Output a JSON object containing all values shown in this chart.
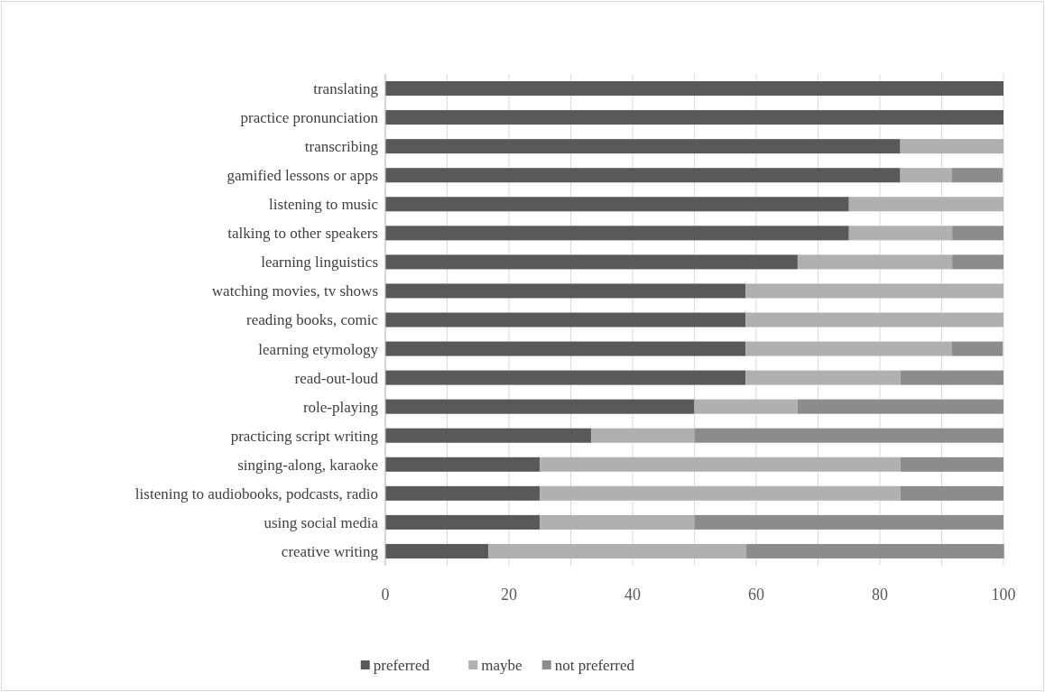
{
  "chart_data": {
    "type": "bar",
    "orientation": "horizontal",
    "stacked": true,
    "categories": [
      "translating",
      "practice pronunciation",
      "transcribing",
      "gamified lessons or apps",
      "listening to music",
      "talking to other speakers",
      "learning linguistics",
      "watching movies, tv shows",
      "reading books, comic",
      "learning etymology",
      "read-out-loud",
      "role-playing",
      "practicing script writing",
      "singing-along, karaoke",
      "listening to audiobooks, podcasts, radio",
      "using social media",
      "creative writing"
    ],
    "series": [
      {
        "name": "preferred",
        "color": "#595959",
        "values": [
          100,
          100,
          83.3,
          83.3,
          75,
          75,
          66.7,
          58.3,
          58.3,
          58.3,
          58.3,
          50,
          33.3,
          25,
          25,
          25,
          16.7
        ]
      },
      {
        "name": "maybe",
        "color": "#b0b0b0",
        "values": [
          0,
          0,
          16.7,
          8.3,
          25,
          16.7,
          25,
          41.7,
          41.7,
          33.3,
          25,
          16.7,
          16.7,
          58.3,
          58.3,
          25,
          41.7
        ]
      },
      {
        "name": "not preferred",
        "color": "#8c8c8c",
        "values": [
          0,
          0,
          0,
          8.3,
          0,
          8.3,
          8.3,
          0,
          0,
          8.3,
          16.7,
          33.3,
          50,
          16.7,
          16.7,
          50,
          41.7
        ]
      }
    ],
    "xlim": [
      0,
      100
    ],
    "xticks": [
      0,
      {
        "value": 10,
        "label": null
      },
      20,
      {
        "value": 30,
        "label": null
      },
      40,
      {
        "value": 50,
        "label": null
      },
      60,
      {
        "value": 70,
        "label": null
      },
      80,
      {
        "value": 90,
        "label": null
      },
      100
    ],
    "grid": "x",
    "legend": "bottom"
  }
}
